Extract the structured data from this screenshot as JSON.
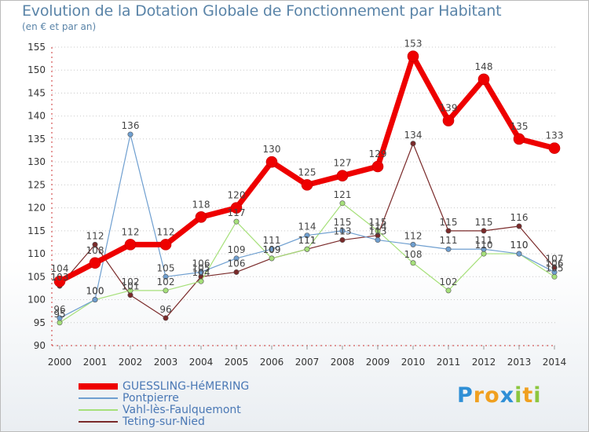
{
  "chart_data": {
    "type": "line",
    "title": "Evolution de la Dotation Globale de Fonctionnement par Habitant",
    "subtitle": "(en € et par an)",
    "xlabel": "",
    "ylabel": "",
    "ylim": [
      90,
      155
    ],
    "yticks": [
      90,
      95,
      100,
      105,
      110,
      115,
      120,
      125,
      130,
      135,
      140,
      145,
      150,
      155
    ],
    "categories": [
      "2000",
      "2001",
      "2002",
      "2003",
      "2004",
      "2005",
      "2006",
      "2007",
      "2008",
      "2009",
      "2010",
      "2011",
      "2012",
      "2013",
      "2014"
    ],
    "series": [
      {
        "name": "GUESSLING-HéMERING",
        "color": "#ee0000",
        "values": [
          104,
          108,
          112,
          112,
          118,
          120,
          130,
          125,
          127,
          129,
          153,
          139,
          148,
          135,
          133
        ]
      },
      {
        "name": "Pontpierre",
        "color": "#6f9fd0",
        "values": [
          96,
          100,
          136,
          105,
          106,
          109,
          111,
          114,
          115,
          113,
          112,
          111,
          111,
          110,
          106
        ]
      },
      {
        "name": "Vahl-lès-Faulquemont",
        "color": "#a6e07a",
        "values": [
          95,
          100,
          102,
          102,
          104,
          117,
          109,
          111,
          121,
          115,
          108,
          102,
          110,
          110,
          105
        ]
      },
      {
        "name": "Teting-sur-Nied",
        "color": "#7a2a2a",
        "values": [
          103,
          112,
          101,
          96,
          105,
          106,
          109,
          111,
          113,
          114,
          134,
          115,
          115,
          116,
          107
        ]
      }
    ]
  },
  "logo": {
    "letters": [
      "P",
      "r",
      "o",
      "x",
      "i",
      "t",
      "i"
    ],
    "colors": [
      "#2f8fd6",
      "#f0a020",
      "#f0a020",
      "#2f8fd6",
      "#8cc63f",
      "#f0a020",
      "#8cc63f"
    ]
  }
}
